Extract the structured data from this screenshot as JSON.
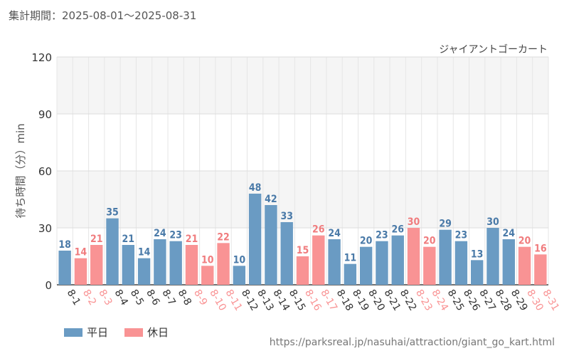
{
  "period_text": "集計期間：2025-08-01～2025-08-31",
  "source_url": "https://parksreal.jp/nasuhai/attraction/giant_go_kart.html",
  "colors": {
    "weekday": "#6a9bc3",
    "holiday": "#f99394",
    "weekday_text": "#4a7aa8",
    "holiday_text": "#f07c7e"
  },
  "chart_data": {
    "type": "bar",
    "title": "ジャイアントゴーカート",
    "ylabel": "待ち時間（分）min",
    "xlabel": "",
    "ylim": [
      0,
      120
    ],
    "yticks": [
      0,
      30,
      60,
      90,
      120
    ],
    "grid": true,
    "legend_position": "bottom-left",
    "categories": [
      "8-1",
      "8-2",
      "8-3",
      "8-4",
      "8-5",
      "8-6",
      "8-7",
      "8-8",
      "8-9",
      "8-10",
      "8-11",
      "8-12",
      "8-13",
      "8-14",
      "8-15",
      "8-16",
      "8-17",
      "8-18",
      "8-19",
      "8-20",
      "8-21",
      "8-22",
      "8-23",
      "8-24",
      "8-25",
      "8-26",
      "8-27",
      "8-28",
      "8-29",
      "8-30",
      "8-31"
    ],
    "values": [
      18,
      14,
      21,
      35,
      21,
      14,
      24,
      23,
      21,
      10,
      22,
      10,
      48,
      42,
      33,
      15,
      26,
      24,
      11,
      20,
      23,
      26,
      30,
      20,
      29,
      23,
      13,
      30,
      24,
      20,
      16
    ],
    "day_type": [
      "weekday",
      "holiday",
      "holiday",
      "weekday",
      "weekday",
      "weekday",
      "weekday",
      "weekday",
      "holiday",
      "holiday",
      "holiday",
      "weekday",
      "weekday",
      "weekday",
      "weekday",
      "holiday",
      "holiday",
      "weekday",
      "weekday",
      "weekday",
      "weekday",
      "weekday",
      "holiday",
      "holiday",
      "weekday",
      "weekday",
      "weekday",
      "weekday",
      "weekday",
      "holiday",
      "holiday"
    ],
    "legend": [
      {
        "key": "weekday",
        "label": "平日"
      },
      {
        "key": "holiday",
        "label": "休日"
      }
    ]
  }
}
